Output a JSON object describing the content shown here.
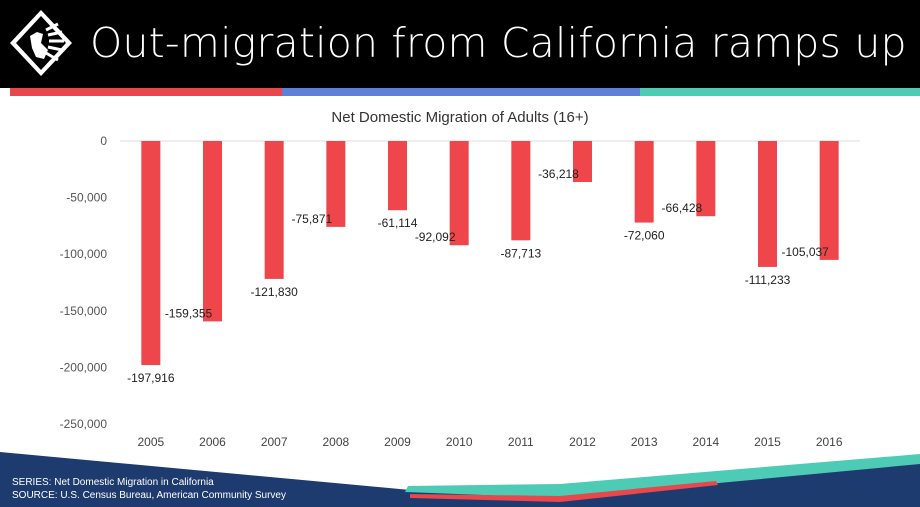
{
  "header": {
    "title": "Out-migration from California ramps up"
  },
  "colors": {
    "bar": "#ee464b",
    "header_bg": "#000000",
    "stripe_red": "#e8474c",
    "stripe_blue": "#5e80d6",
    "stripe_teal": "#4ecbb4",
    "footer_navy": "#1d3b6e"
  },
  "chart_data": {
    "type": "bar",
    "title": "Net Domestic Migration of Adults (16+)",
    "xlabel": "",
    "ylabel": "",
    "categories": [
      "2005",
      "2006",
      "2007",
      "2008",
      "2009",
      "2010",
      "2011",
      "2012",
      "2013",
      "2014",
      "2015",
      "2016"
    ],
    "values": [
      -197916,
      -159355,
      -121830,
      -75871,
      -61114,
      -92092,
      -87713,
      -36218,
      -72060,
      -66428,
      -111233,
      -105037
    ],
    "value_labels": [
      "-197,916",
      "-159,355",
      "-121,830",
      "-75,871",
      "-61,114",
      "-92,092",
      "-87,713",
      "-36,218",
      "-72,060",
      "-66,428",
      "-111,233",
      "-105,037"
    ],
    "ylim": [
      -250000,
      0
    ],
    "yticks": [
      0,
      -50000,
      -100000,
      -150000,
      -200000,
      -250000
    ],
    "ytick_labels": [
      "0",
      "-50,000",
      "-100,000",
      "-150,000",
      "-200,000",
      "-250,000"
    ],
    "grid": false,
    "legend": "none"
  },
  "footer": {
    "series": "SERIES: Net Domestic Migration in California",
    "source": "SOURCE:  U.S. Census Bureau, American Community Survey"
  }
}
